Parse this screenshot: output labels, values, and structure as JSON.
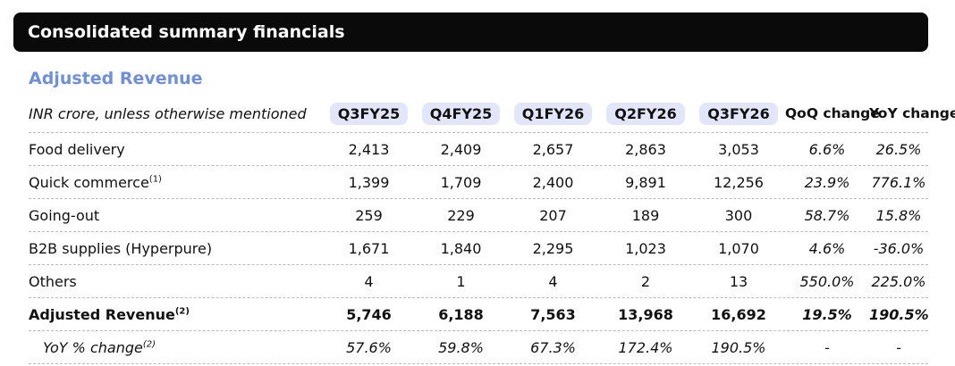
{
  "header": {
    "title": "Consolidated summary financials"
  },
  "subtitle": "Adjusted Revenue",
  "table": {
    "columns": [
      "INR crore, unless otherwise mentioned",
      "Q3FY25",
      "Q4FY25",
      "Q1FY26",
      "Q2FY26",
      "Q3FY26",
      "QoQ change",
      "YoY change"
    ],
    "rows": [
      {
        "label": "Food delivery",
        "cells": [
          "2,413",
          "2,409",
          "2,657",
          "2,863",
          "3,053",
          "6.6%",
          "26.5%"
        ]
      },
      {
        "label": "Quick commerce",
        "note": "(1)",
        "cells": [
          "1,399",
          "1,709",
          "2,400",
          "9,891",
          "12,256",
          "23.9%",
          "776.1%"
        ]
      },
      {
        "label": "Going-out",
        "cells": [
          "259",
          "229",
          "207",
          "189",
          "300",
          "58.7%",
          "15.8%"
        ]
      },
      {
        "label": "B2B supplies (Hyperpure)",
        "cells": [
          "1,671",
          "1,840",
          "2,295",
          "1,023",
          "1,070",
          "4.6%",
          "-36.0%"
        ]
      },
      {
        "label": "Others",
        "cells": [
          "4",
          "1",
          "4",
          "2",
          "13",
          "550.0%",
          "225.0%"
        ]
      },
      {
        "label": "Adjusted Revenue",
        "note": "(2)",
        "cells": [
          "5,746",
          "6,188",
          "7,563",
          "13,968",
          "16,692",
          "19.5%",
          "190.5%"
        ]
      },
      {
        "label": "YoY % change",
        "note": "(2)",
        "cells": [
          "57.6%",
          "59.8%",
          "67.3%",
          "172.4%",
          "190.5%",
          "-",
          "-"
        ]
      }
    ]
  }
}
